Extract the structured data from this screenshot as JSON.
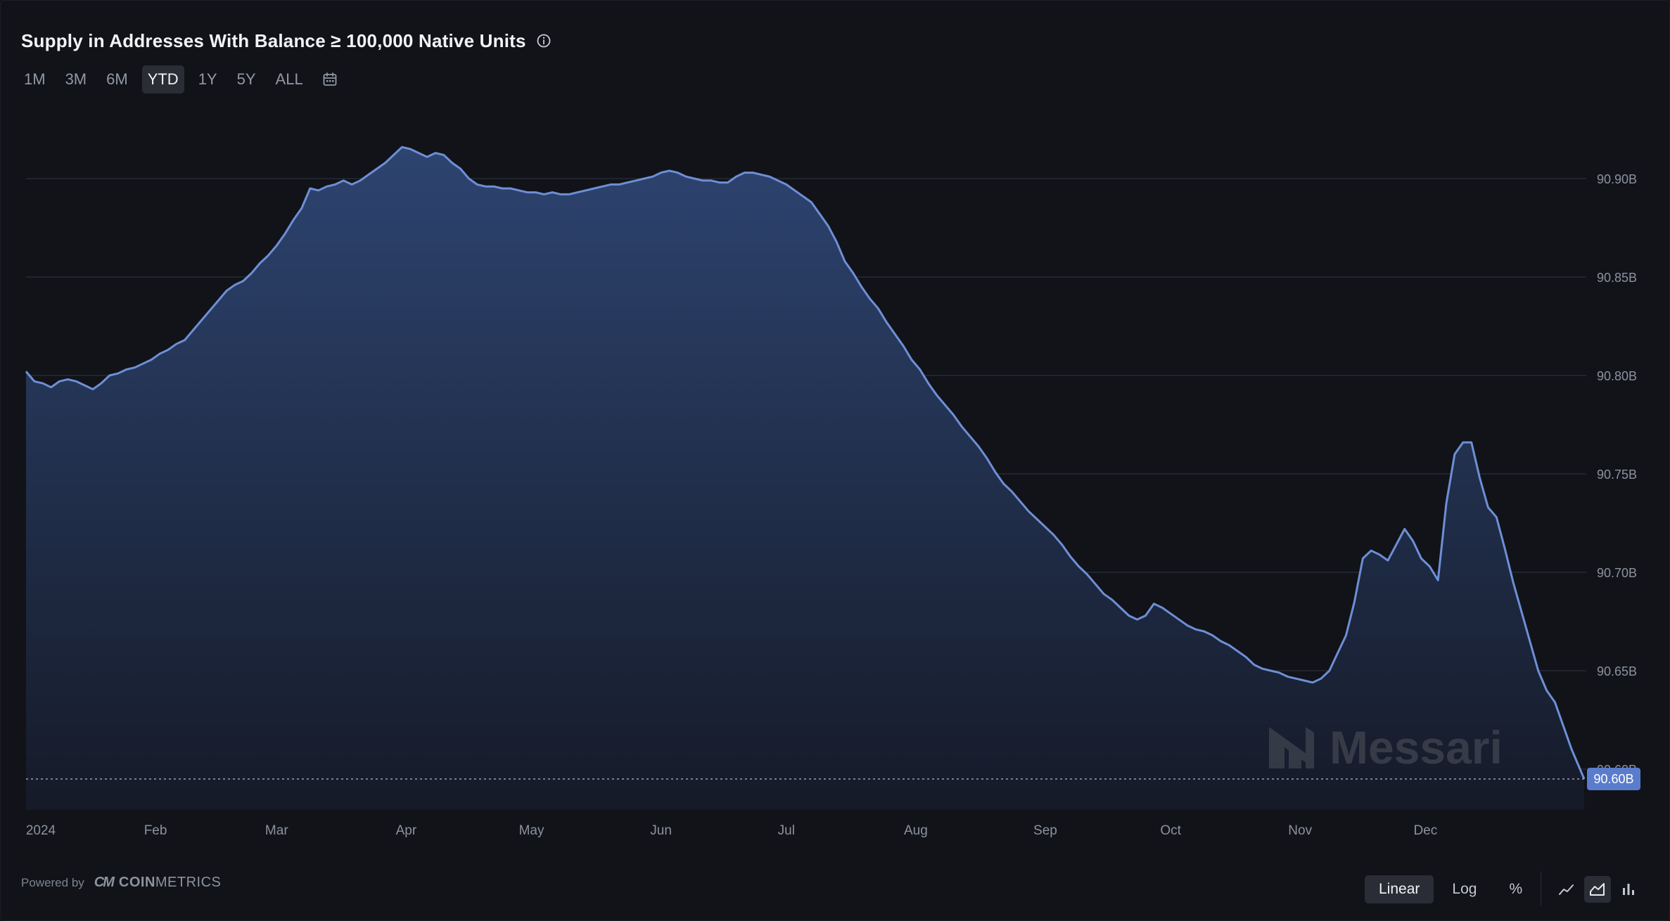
{
  "header": {
    "title": "Supply in Addresses With Balance ≥ 100,000 Native Units"
  },
  "ranges": {
    "items": [
      "1M",
      "3M",
      "6M",
      "YTD",
      "1Y",
      "5Y",
      "ALL"
    ],
    "active": "YTD"
  },
  "footer": {
    "powered_by": "Powered by",
    "provider_mark": "CM",
    "provider_bold": "COIN",
    "provider_rest": "METRICS",
    "watermark": "Messari"
  },
  "scale": {
    "items": [
      "Linear",
      "Log",
      "%"
    ],
    "active": "Linear"
  },
  "chart_types": {
    "items": [
      "line-chart-icon",
      "area-chart-icon",
      "bar-chart-icon"
    ],
    "active": "area-chart-icon"
  },
  "colors": {
    "line": "#6e8fd6",
    "fill_top": "#2d4470",
    "fill_bottom": "#151a28",
    "grid": "#262a33",
    "axis_text": "#8c929e",
    "badge": "#5a7ccc"
  },
  "chart_data": {
    "type": "area",
    "title": "Supply in Addresses With Balance ≥ 100,000 Native Units",
    "y_unit": "B",
    "ylim": [
      90.585,
      90.925
    ],
    "y_ticks": [
      90.6,
      90.65,
      90.7,
      90.75,
      90.8,
      90.85,
      90.9
    ],
    "y_tick_labels": [
      "90.60B",
      "90.65B",
      "90.70B",
      "90.75B",
      "90.80B",
      "90.85B",
      "90.90B"
    ],
    "x_ticks": [
      {
        "day": 0,
        "label": "2024"
      },
      {
        "day": 31,
        "label": "Feb"
      },
      {
        "day": 60,
        "label": "Mar"
      },
      {
        "day": 91,
        "label": "Apr"
      },
      {
        "day": 121,
        "label": "May"
      },
      {
        "day": 152,
        "label": "Jun"
      },
      {
        "day": 182,
        "label": "Jul"
      },
      {
        "day": 213,
        "label": "Aug"
      },
      {
        "day": 244,
        "label": "Sep"
      },
      {
        "day": 274,
        "label": "Oct"
      },
      {
        "day": 305,
        "label": "Nov"
      },
      {
        "day": 335,
        "label": "Dec"
      }
    ],
    "current_value": 90.595,
    "current_label": "90.60B",
    "grid": "horizontal",
    "legend": "none",
    "points": [
      [
        0,
        90.802
      ],
      [
        2,
        90.797
      ],
      [
        4,
        90.796
      ],
      [
        6,
        90.794
      ],
      [
        8,
        90.797
      ],
      [
        10,
        90.798
      ],
      [
        12,
        90.797
      ],
      [
        14,
        90.795
      ],
      [
        16,
        90.793
      ],
      [
        18,
        90.796
      ],
      [
        20,
        90.8
      ],
      [
        22,
        90.801
      ],
      [
        24,
        90.803
      ],
      [
        26,
        90.804
      ],
      [
        28,
        90.806
      ],
      [
        30,
        90.808
      ],
      [
        32,
        90.811
      ],
      [
        34,
        90.813
      ],
      [
        36,
        90.816
      ],
      [
        38,
        90.818
      ],
      [
        40,
        90.823
      ],
      [
        42,
        90.828
      ],
      [
        44,
        90.833
      ],
      [
        46,
        90.838
      ],
      [
        48,
        90.843
      ],
      [
        50,
        90.846
      ],
      [
        52,
        90.848
      ],
      [
        54,
        90.852
      ],
      [
        56,
        90.857
      ],
      [
        58,
        90.861
      ],
      [
        60,
        90.866
      ],
      [
        62,
        90.872
      ],
      [
        64,
        90.879
      ],
      [
        66,
        90.885
      ],
      [
        68,
        90.895
      ],
      [
        70,
        90.894
      ],
      [
        72,
        90.896
      ],
      [
        74,
        90.897
      ],
      [
        76,
        90.899
      ],
      [
        78,
        90.897
      ],
      [
        80,
        90.899
      ],
      [
        82,
        90.902
      ],
      [
        84,
        90.905
      ],
      [
        86,
        90.908
      ],
      [
        88,
        90.912
      ],
      [
        90,
        90.916
      ],
      [
        92,
        90.915
      ],
      [
        94,
        90.913
      ],
      [
        96,
        90.911
      ],
      [
        98,
        90.913
      ],
      [
        100,
        90.912
      ],
      [
        102,
        90.908
      ],
      [
        104,
        90.905
      ],
      [
        106,
        90.9
      ],
      [
        108,
        90.897
      ],
      [
        110,
        90.896
      ],
      [
        112,
        90.896
      ],
      [
        114,
        90.895
      ],
      [
        116,
        90.895
      ],
      [
        118,
        90.894
      ],
      [
        120,
        90.893
      ],
      [
        122,
        90.893
      ],
      [
        124,
        90.892
      ],
      [
        126,
        90.893
      ],
      [
        128,
        90.892
      ],
      [
        130,
        90.892
      ],
      [
        132,
        90.893
      ],
      [
        134,
        90.894
      ],
      [
        136,
        90.895
      ],
      [
        138,
        90.896
      ],
      [
        140,
        90.897
      ],
      [
        142,
        90.897
      ],
      [
        144,
        90.898
      ],
      [
        146,
        90.899
      ],
      [
        148,
        90.9
      ],
      [
        150,
        90.901
      ],
      [
        152,
        90.903
      ],
      [
        154,
        90.904
      ],
      [
        156,
        90.903
      ],
      [
        158,
        90.901
      ],
      [
        160,
        90.9
      ],
      [
        162,
        90.899
      ],
      [
        164,
        90.899
      ],
      [
        166,
        90.898
      ],
      [
        168,
        90.898
      ],
      [
        170,
        90.901
      ],
      [
        172,
        90.903
      ],
      [
        174,
        90.903
      ],
      [
        176,
        90.902
      ],
      [
        178,
        90.901
      ],
      [
        180,
        90.899
      ],
      [
        182,
        90.897
      ],
      [
        184,
        90.894
      ],
      [
        186,
        90.891
      ],
      [
        188,
        90.888
      ],
      [
        190,
        90.882
      ],
      [
        192,
        90.876
      ],
      [
        194,
        90.868
      ],
      [
        196,
        90.858
      ],
      [
        198,
        90.852
      ],
      [
        200,
        90.845
      ],
      [
        202,
        90.839
      ],
      [
        204,
        90.834
      ],
      [
        206,
        90.827
      ],
      [
        208,
        90.821
      ],
      [
        210,
        90.815
      ],
      [
        212,
        90.808
      ],
      [
        214,
        90.803
      ],
      [
        216,
        90.796
      ],
      [
        218,
        90.79
      ],
      [
        220,
        90.785
      ],
      [
        222,
        90.78
      ],
      [
        224,
        90.774
      ],
      [
        226,
        90.769
      ],
      [
        228,
        90.764
      ],
      [
        230,
        90.758
      ],
      [
        232,
        90.751
      ],
      [
        234,
        90.745
      ],
      [
        236,
        90.741
      ],
      [
        238,
        90.736
      ],
      [
        240,
        90.731
      ],
      [
        242,
        90.727
      ],
      [
        244,
        90.723
      ],
      [
        246,
        90.719
      ],
      [
        248,
        90.714
      ],
      [
        250,
        90.708
      ],
      [
        252,
        90.703
      ],
      [
        254,
        90.699
      ],
      [
        256,
        90.694
      ],
      [
        258,
        90.689
      ],
      [
        260,
        90.686
      ],
      [
        262,
        90.682
      ],
      [
        264,
        90.678
      ],
      [
        266,
        90.676
      ],
      [
        268,
        90.678
      ],
      [
        270,
        90.684
      ],
      [
        272,
        90.682
      ],
      [
        274,
        90.679
      ],
      [
        276,
        90.676
      ],
      [
        278,
        90.673
      ],
      [
        280,
        90.671
      ],
      [
        282,
        90.67
      ],
      [
        284,
        90.668
      ],
      [
        286,
        90.665
      ],
      [
        288,
        90.663
      ],
      [
        290,
        90.66
      ],
      [
        292,
        90.657
      ],
      [
        294,
        90.653
      ],
      [
        296,
        90.651
      ],
      [
        298,
        90.65
      ],
      [
        300,
        90.649
      ],
      [
        302,
        90.647
      ],
      [
        304,
        90.646
      ],
      [
        306,
        90.645
      ],
      [
        308,
        90.644
      ],
      [
        310,
        90.646
      ],
      [
        312,
        90.65
      ],
      [
        314,
        90.659
      ],
      [
        316,
        90.668
      ],
      [
        318,
        90.685
      ],
      [
        320,
        90.707
      ],
      [
        322,
        90.711
      ],
      [
        324,
        90.709
      ],
      [
        326,
        90.706
      ],
      [
        328,
        90.714
      ],
      [
        330,
        90.722
      ],
      [
        332,
        90.716
      ],
      [
        334,
        90.707
      ],
      [
        336,
        90.703
      ],
      [
        338,
        90.696
      ],
      [
        340,
        90.735
      ],
      [
        342,
        90.76
      ],
      [
        344,
        90.766
      ],
      [
        346,
        90.766
      ],
      [
        348,
        90.748
      ],
      [
        350,
        90.733
      ],
      [
        352,
        90.728
      ],
      [
        354,
        90.712
      ],
      [
        356,
        90.695
      ],
      [
        358,
        90.68
      ],
      [
        360,
        90.665
      ],
      [
        362,
        90.65
      ],
      [
        364,
        90.64
      ],
      [
        366,
        90.634
      ],
      [
        368,
        90.622
      ],
      [
        370,
        90.61
      ],
      [
        372,
        90.6
      ],
      [
        373,
        90.595
      ]
    ]
  }
}
